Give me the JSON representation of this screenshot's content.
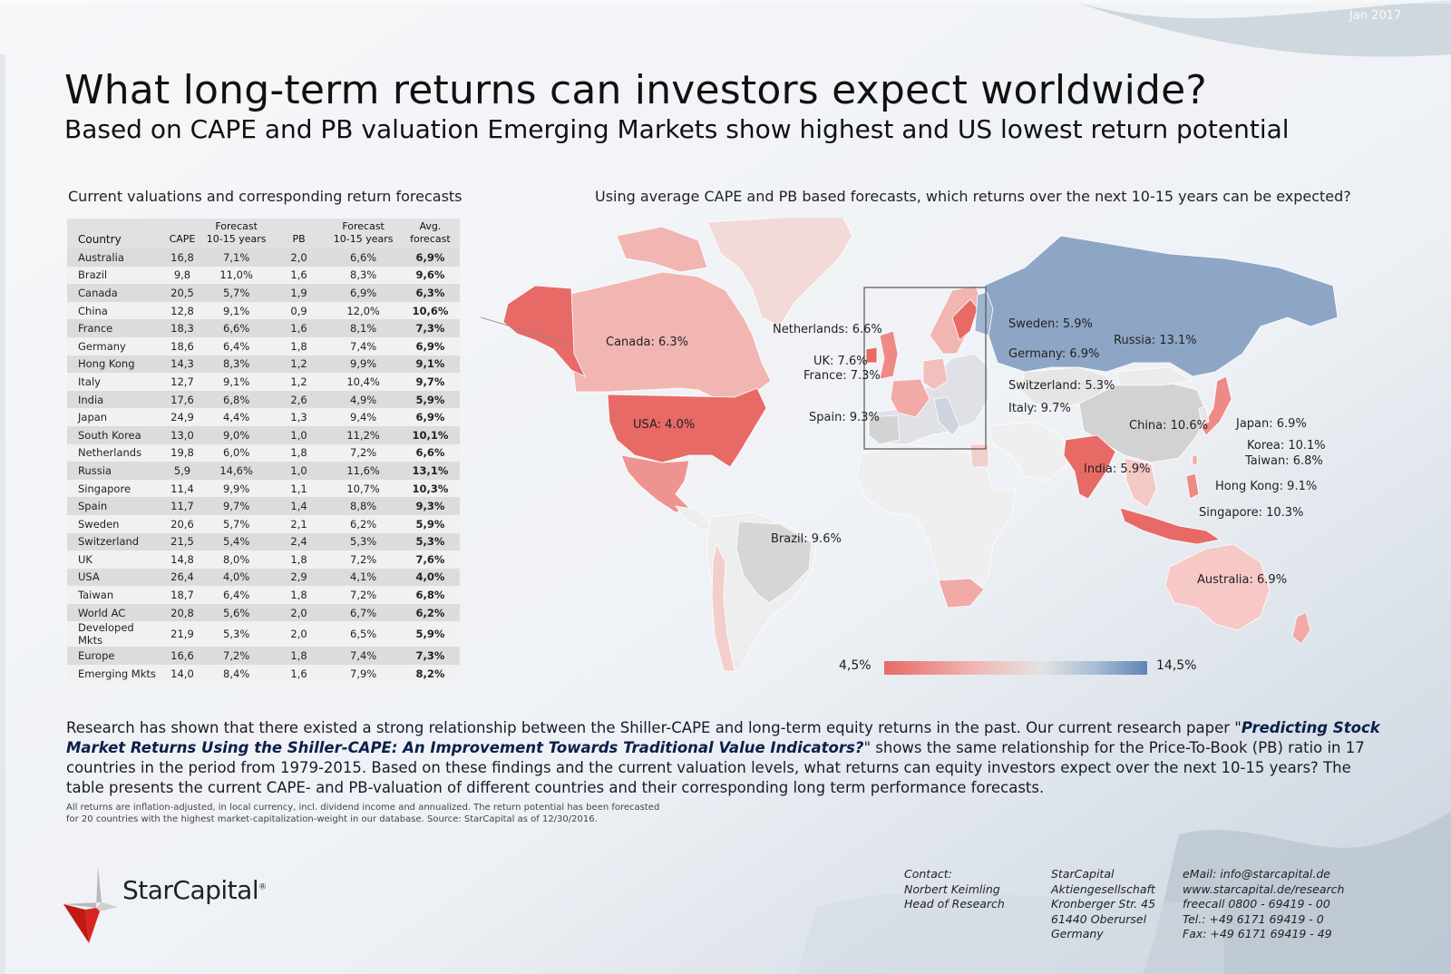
{
  "date": "Jan 2017",
  "title": "What long-term returns can investors expect worldwide?",
  "subtitle": "Based on CAPE and PB valuation Emerging Markets show highest and US lowest return potential",
  "table_caption": "Current valuations and corresponding return forecasts",
  "map_caption": "Using average CAPE and PB based forecasts, which returns over the next 10-15 years can be expected?",
  "table": {
    "headers": {
      "country": "Country",
      "cape": "CAPE",
      "forecast_top": "Forecast",
      "forecast_bottom": "10-15 years",
      "pb": "PB",
      "avg_top": "Avg.",
      "avg_bottom": "forecast"
    },
    "rows": [
      {
        "country": "Australia",
        "cape": "16,8",
        "cape_forecast": "7,1%",
        "pb": "2,0",
        "pb_forecast": "6,6%",
        "avg": "6,9%"
      },
      {
        "country": "Brazil",
        "cape": "9,8",
        "cape_forecast": "11,0%",
        "pb": "1,6",
        "pb_forecast": "8,3%",
        "avg": "9,6%"
      },
      {
        "country": "Canada",
        "cape": "20,5",
        "cape_forecast": "5,7%",
        "pb": "1,9",
        "pb_forecast": "6,9%",
        "avg": "6,3%"
      },
      {
        "country": "China",
        "cape": "12,8",
        "cape_forecast": "9,1%",
        "pb": "0,9",
        "pb_forecast": "12,0%",
        "avg": "10,6%"
      },
      {
        "country": "France",
        "cape": "18,3",
        "cape_forecast": "6,6%",
        "pb": "1,6",
        "pb_forecast": "8,1%",
        "avg": "7,3%"
      },
      {
        "country": "Germany",
        "cape": "18,6",
        "cape_forecast": "6,4%",
        "pb": "1,8",
        "pb_forecast": "7,4%",
        "avg": "6,9%"
      },
      {
        "country": "Hong Kong",
        "cape": "14,3",
        "cape_forecast": "8,3%",
        "pb": "1,2",
        "pb_forecast": "9,9%",
        "avg": "9,1%"
      },
      {
        "country": "Italy",
        "cape": "12,7",
        "cape_forecast": "9,1%",
        "pb": "1,2",
        "pb_forecast": "10,4%",
        "avg": "9,7%"
      },
      {
        "country": "India",
        "cape": "17,6",
        "cape_forecast": "6,8%",
        "pb": "2,6",
        "pb_forecast": "4,9%",
        "avg": "5,9%"
      },
      {
        "country": "Japan",
        "cape": "24,9",
        "cape_forecast": "4,4%",
        "pb": "1,3",
        "pb_forecast": "9,4%",
        "avg": "6,9%"
      },
      {
        "country": "South Korea",
        "cape": "13,0",
        "cape_forecast": "9,0%",
        "pb": "1,0",
        "pb_forecast": "11,2%",
        "avg": "10,1%"
      },
      {
        "country": "Netherlands",
        "cape": "19,8",
        "cape_forecast": "6,0%",
        "pb": "1,8",
        "pb_forecast": "7,2%",
        "avg": "6,6%"
      },
      {
        "country": "Russia",
        "cape": "5,9",
        "cape_forecast": "14,6%",
        "pb": "1,0",
        "pb_forecast": "11,6%",
        "avg": "13,1%"
      },
      {
        "country": "Singapore",
        "cape": "11,4",
        "cape_forecast": "9,9%",
        "pb": "1,1",
        "pb_forecast": "10,7%",
        "avg": "10,3%"
      },
      {
        "country": "Spain",
        "cape": "11,7",
        "cape_forecast": "9,7%",
        "pb": "1,4",
        "pb_forecast": "8,8%",
        "avg": "9,3%"
      },
      {
        "country": "Sweden",
        "cape": "20,6",
        "cape_forecast": "5,7%",
        "pb": "2,1",
        "pb_forecast": "6,2%",
        "avg": "5,9%"
      },
      {
        "country": "Switzerland",
        "cape": "21,5",
        "cape_forecast": "5,4%",
        "pb": "2,4",
        "pb_forecast": "5,3%",
        "avg": "5,3%"
      },
      {
        "country": "UK",
        "cape": "14,8",
        "cape_forecast": "8,0%",
        "pb": "1,8",
        "pb_forecast": "7,2%",
        "avg": "7,6%"
      },
      {
        "country": "USA",
        "cape": "26,4",
        "cape_forecast": "4,0%",
        "pb": "2,9",
        "pb_forecast": "4,1%",
        "avg": "4,0%"
      },
      {
        "country": "Taiwan",
        "cape": "18,7",
        "cape_forecast": "6,4%",
        "pb": "1,8",
        "pb_forecast": "7,2%",
        "avg": "6,8%"
      },
      {
        "country": "World AC",
        "cape": "20,8",
        "cape_forecast": "5,6%",
        "pb": "2,0",
        "pb_forecast": "6,7%",
        "avg": "6,2%"
      },
      {
        "country": "Developed Mkts",
        "cape": "21,9",
        "cape_forecast": "5,3%",
        "pb": "2,0",
        "pb_forecast": "6,5%",
        "avg": "5,9%"
      },
      {
        "country": "Europe",
        "cape": "16,6",
        "cape_forecast": "7,2%",
        "pb": "1,8",
        "pb_forecast": "7,4%",
        "avg": "7,3%"
      },
      {
        "country": "Emerging Mkts",
        "cape": "14,0",
        "cape_forecast": "8,4%",
        "pb": "1,6",
        "pb_forecast": "7,9%",
        "avg": "8,2%"
      }
    ]
  },
  "map": {
    "labels": {
      "canada": "Canada: 6.3%",
      "usa": "USA: 4.0%",
      "brazil": "Brazil: 9.6%",
      "netherlands": "Netherlands: 6.6%",
      "uk": "UK: 7.6%",
      "france": "France: 7.3%",
      "spain": "Spain: 9.3%",
      "sweden": "Sweden: 5.9%",
      "germany": "Germany: 6.9%",
      "switzerland": "Switzerland: 5.3%",
      "italy": "Italy: 9.7%",
      "russia": "Russia: 13.1%",
      "china": "China: 10.6%",
      "japan": "Japan: 6.9%",
      "korea": "Korea: 10.1%",
      "taiwan": "Taiwan: 6.8%",
      "india": "India: 5.9%",
      "hongkong": "Hong Kong: 9.1%",
      "singapore": "Singapore: 10.3%",
      "australia": "Australia: 6.9%"
    },
    "colors": {
      "low": "#e86a66",
      "mid_low": "#f0b8b4",
      "neutral": "#e3e3e3",
      "mid_high": "#a9bdd6",
      "high": "#5f84b4"
    },
    "legend_min": "4,5%",
    "legend_max": "14,5%",
    "legend_range": [
      4.5,
      14.5
    ]
  },
  "body": {
    "part1": "Research has shown that there existed a strong relationship between the Shiller-CAPE and long-term equity returns in the past. Our current research paper \"",
    "paper_title": "Predicting Stock Market Returns Using the Shiller-CAPE: An Improvement Towards Traditional Value Indicators?",
    "part2": "\" shows the same relationship for the Price-To-Book (PB) ratio in 17 countries in the period from 1979-2015. Based on these findings and the current valuation levels, what returns can equity investors expect over the next 10-15 years? The table presents the current CAPE- and PB-valuation of different countries and their corresponding long term performance forecasts."
  },
  "footnote_line1": "All returns are inflation-adjusted, in local currency, incl. dividend income and annualized. The return potential has been forecasted",
  "footnote_line2": "for 20 countries with the highest market-capitalization-weight in our database. Source: StarCapital as of 12/30/2016.",
  "logo": {
    "text": "StarCapital",
    "reg": "®"
  },
  "contact": {
    "col1": [
      "Contact:",
      "Norbert Keimling",
      "Head of Research"
    ],
    "col2": [
      "StarCapital",
      "Aktiengesellschaft",
      "Kronberger Str. 45",
      "61440 Oberursel",
      "Germany"
    ],
    "col3": [
      "eMail: info@starcapital.de",
      "www.starcapital.de/research",
      "freecall 0800 - 69419 - 00",
      "Tel.: +49 6171 69419 - 0",
      "Fax: +49 6171 69419 - 49"
    ]
  }
}
